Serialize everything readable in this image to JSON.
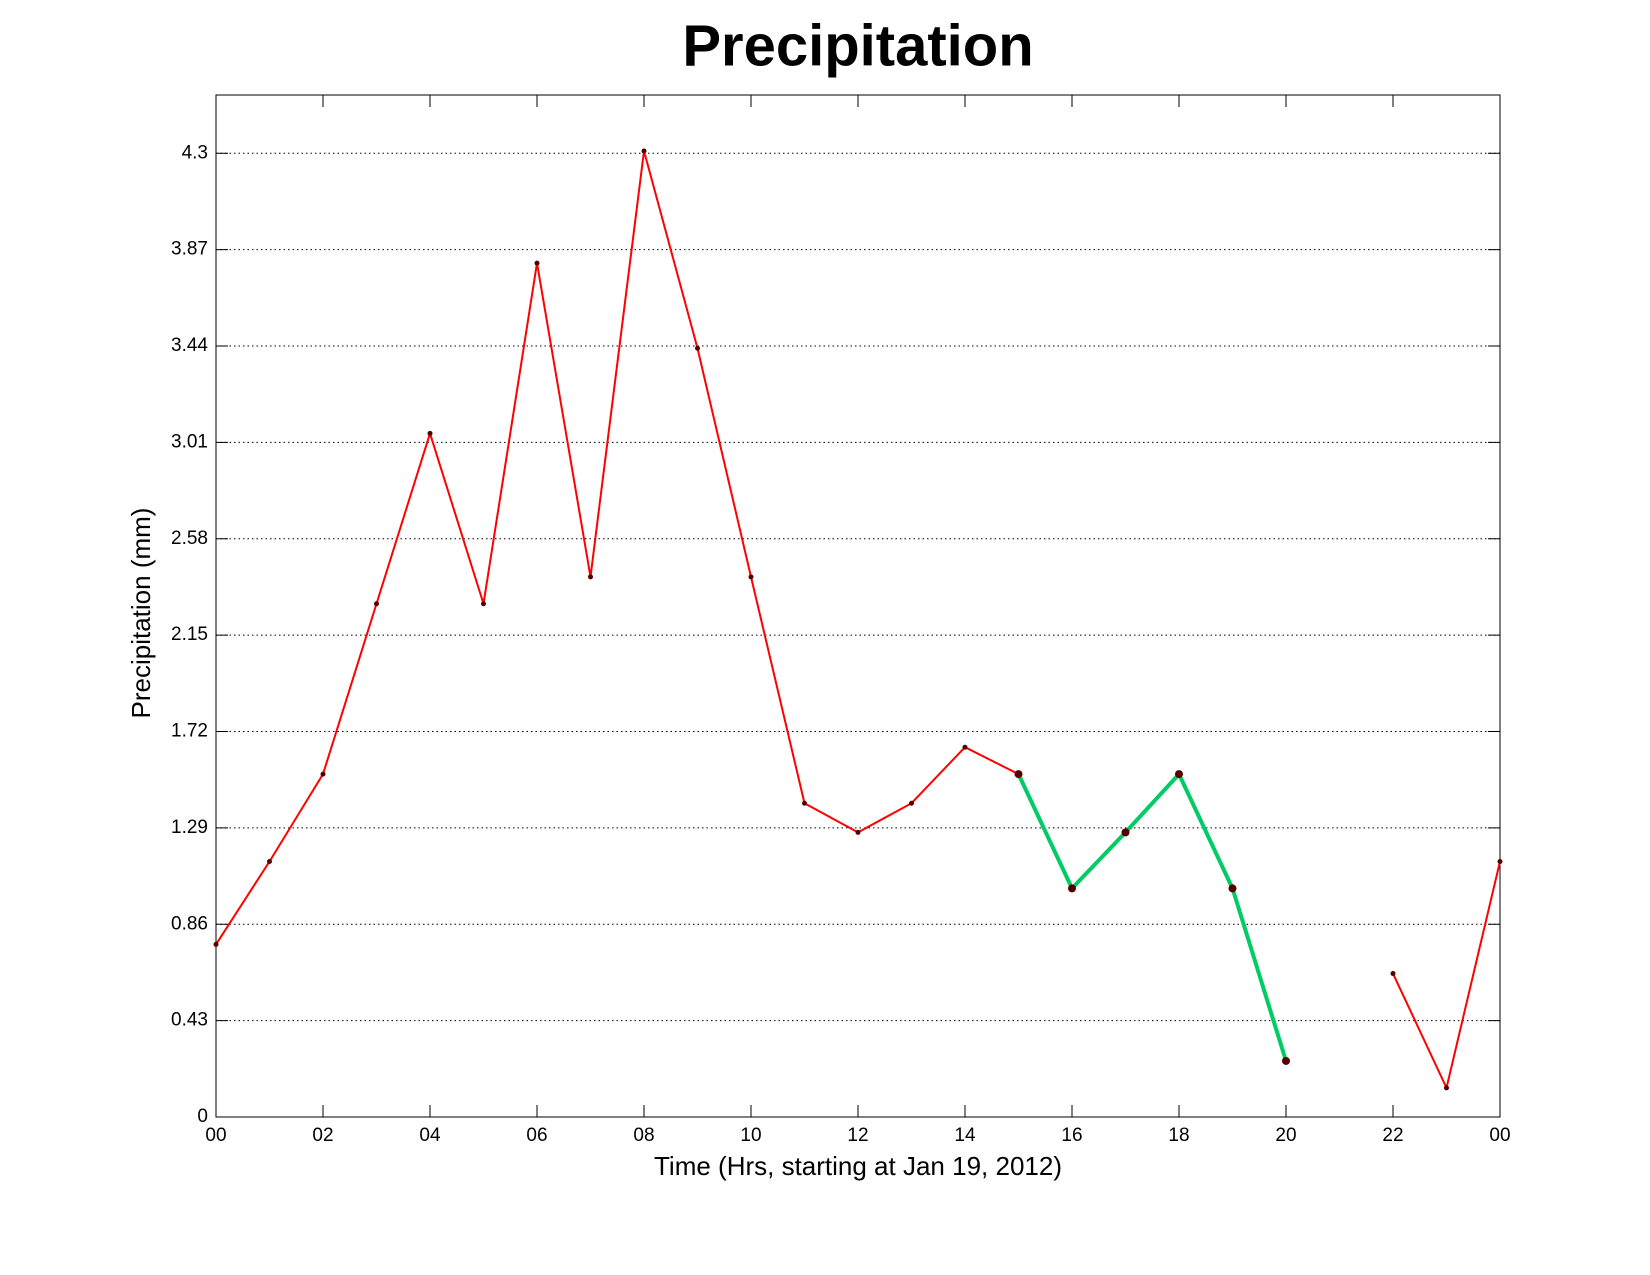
{
  "chart_data": {
    "type": "line",
    "title": "Precipitation",
    "xlabel": "Time (Hrs, starting at Jan 19, 2012)",
    "ylabel": "Precipitation (mm)",
    "x": [
      0,
      1,
      2,
      3,
      4,
      5,
      6,
      7,
      8,
      9,
      10,
      11,
      12,
      13,
      14,
      15,
      16,
      17,
      18,
      19,
      20,
      21,
      22,
      23,
      24
    ],
    "series": [
      {
        "color": "#ff0000",
        "line_width": 2,
        "values": [
          0.77,
          1.14,
          1.53,
          2.29,
          3.05,
          2.29,
          3.81,
          2.41,
          4.31,
          3.43,
          2.41,
          1.4,
          1.27,
          1.4,
          1.65,
          1.53,
          null,
          null,
          null,
          null,
          null,
          null,
          0.64,
          0.13,
          1.14
        ]
      },
      {
        "color": "#00cc66",
        "line_width": 4,
        "values": [
          null,
          null,
          null,
          null,
          null,
          null,
          null,
          null,
          null,
          null,
          null,
          null,
          null,
          null,
          null,
          1.53,
          1.02,
          1.27,
          1.53,
          1.02,
          0.25,
          null,
          null,
          null,
          null
        ]
      }
    ],
    "marker_color": "#550000",
    "xlim": [
      0,
      24
    ],
    "xticks": [
      {
        "value": 0,
        "label": "00"
      },
      {
        "value": 2,
        "label": "02"
      },
      {
        "value": 4,
        "label": "04"
      },
      {
        "value": 6,
        "label": "06"
      },
      {
        "value": 8,
        "label": "08"
      },
      10,
      12,
      14,
      16,
      18,
      20,
      22,
      {
        "value": 24,
        "label": "00"
      }
    ],
    "ylim": [
      0,
      4.56
    ],
    "yticks": [
      0,
      0.43,
      0.86,
      1.29,
      1.72,
      2.15,
      2.58,
      3.01,
      3.44,
      3.87,
      4.3
    ],
    "grid": "y"
  }
}
